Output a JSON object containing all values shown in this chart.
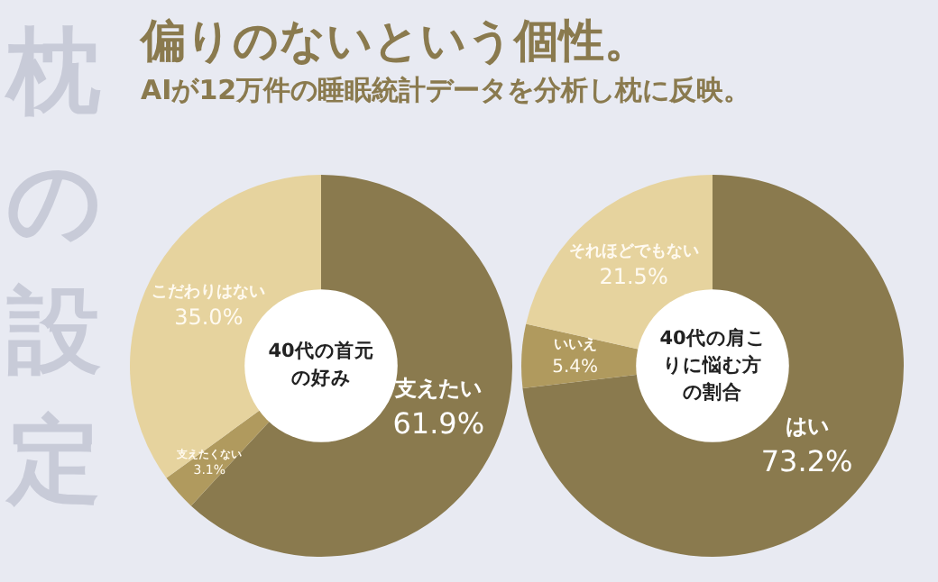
{
  "chart_data": [
    {
      "type": "other",
      "title": "偏りのないという個性。",
      "subtitle": "AIが12万件の睡眠統計データを分析し枕に反映。",
      "annotations": [
        "枕の設定"
      ]
    },
    {
      "type": "donut",
      "title": "40代の首元の好み",
      "categories": [
        "支えたい",
        "支えたくない",
        "こだわりはない"
      ],
      "values": [
        61.9,
        3.1,
        35.0
      ],
      "value_labels": [
        "61.9%",
        "3.1%",
        "35.0%"
      ],
      "colors": [
        "#8a7a4e",
        "#b09a5e",
        "#e6d39e"
      ]
    },
    {
      "type": "donut",
      "title": "40代の肩こりに悩む方の割合",
      "categories": [
        "はい",
        "いいえ",
        "それほどでもない"
      ],
      "values": [
        73.2,
        5.4,
        21.5
      ],
      "value_labels": [
        "73.2%",
        "5.4%",
        "21.5%"
      ],
      "colors": [
        "#8a7a4e",
        "#b09a5e",
        "#e6d39e"
      ]
    }
  ]
}
